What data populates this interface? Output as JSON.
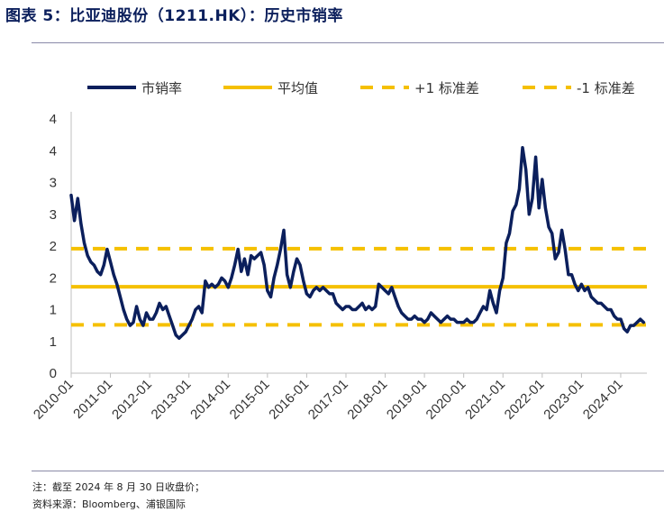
{
  "title": "图表 5：比亚迪股份（1211.HK）：历史市销率",
  "notes": {
    "line1": "注：截至 2024 年 8 月 30 日收盘价；",
    "line2": "资料来源：Bloomberg、浦银国际"
  },
  "chart_data": {
    "type": "line",
    "legend_position": "top",
    "grid": false,
    "colors": {
      "series": "#0b1f5c",
      "mean": "#f5c000",
      "plus1sd": "#f5c000",
      "minus1sd": "#f5c000",
      "axis": "#bfbfbf"
    },
    "legend": [
      "市销率",
      "平均值",
      "+1 标准差",
      "-1 标准差"
    ],
    "y_tick_labels": [
      "0",
      "1",
      "1",
      "2",
      "2",
      "3",
      "3",
      "4",
      "4"
    ],
    "y_tick_values": [
      0,
      0.5,
      1.0,
      1.5,
      2.0,
      2.5,
      3.0,
      3.5,
      4.0
    ],
    "ylim": [
      0,
      4.0
    ],
    "x_tick_labels": [
      "2010-01",
      "2011-01",
      "2012-01",
      "2013-01",
      "2014-01",
      "2015-01",
      "2016-01",
      "2017-01",
      "2018-01",
      "2019-01",
      "2020-01",
      "2021-01",
      "2022-01",
      "2023-01",
      "2024-01"
    ],
    "xlim": [
      "2010-01",
      "2024-09"
    ],
    "mean": 1.36,
    "plus1sd": 1.96,
    "minus1sd": 0.76,
    "series": [
      {
        "name": "市销率",
        "x": [
          "2010-01",
          "2010-02",
          "2010-03",
          "2010-04",
          "2010-05",
          "2010-06",
          "2010-07",
          "2010-08",
          "2010-09",
          "2010-10",
          "2010-11",
          "2010-12",
          "2011-01",
          "2011-02",
          "2011-03",
          "2011-04",
          "2011-05",
          "2011-06",
          "2011-07",
          "2011-08",
          "2011-09",
          "2011-10",
          "2011-11",
          "2011-12",
          "2012-01",
          "2012-02",
          "2012-03",
          "2012-04",
          "2012-05",
          "2012-06",
          "2012-07",
          "2012-08",
          "2012-09",
          "2012-10",
          "2012-11",
          "2012-12",
          "2013-01",
          "2013-02",
          "2013-03",
          "2013-04",
          "2013-05",
          "2013-06",
          "2013-07",
          "2013-08",
          "2013-09",
          "2013-10",
          "2013-11",
          "2013-12",
          "2014-01",
          "2014-02",
          "2014-03",
          "2014-04",
          "2014-05",
          "2014-06",
          "2014-07",
          "2014-08",
          "2014-09",
          "2014-10",
          "2014-11",
          "2014-12",
          "2015-01",
          "2015-02",
          "2015-03",
          "2015-04",
          "2015-05",
          "2015-06",
          "2015-07",
          "2015-08",
          "2015-09",
          "2015-10",
          "2015-11",
          "2015-12",
          "2016-01",
          "2016-02",
          "2016-03",
          "2016-04",
          "2016-05",
          "2016-06",
          "2016-07",
          "2016-08",
          "2016-09",
          "2016-10",
          "2016-11",
          "2016-12",
          "2017-01",
          "2017-02",
          "2017-03",
          "2017-04",
          "2017-05",
          "2017-06",
          "2017-07",
          "2017-08",
          "2017-09",
          "2017-10",
          "2017-11",
          "2017-12",
          "2018-01",
          "2018-02",
          "2018-03",
          "2018-04",
          "2018-05",
          "2018-06",
          "2018-07",
          "2018-08",
          "2018-09",
          "2018-10",
          "2018-11",
          "2018-12",
          "2019-01",
          "2019-02",
          "2019-03",
          "2019-04",
          "2019-05",
          "2019-06",
          "2019-07",
          "2019-08",
          "2019-09",
          "2019-10",
          "2019-11",
          "2019-12",
          "2020-01",
          "2020-02",
          "2020-03",
          "2020-04",
          "2020-05",
          "2020-06",
          "2020-07",
          "2020-08",
          "2020-09",
          "2020-10",
          "2020-11",
          "2020-12",
          "2021-01",
          "2021-02",
          "2021-03",
          "2021-04",
          "2021-05",
          "2021-06",
          "2021-07",
          "2021-08",
          "2021-09",
          "2021-10",
          "2021-11",
          "2021-12",
          "2022-01",
          "2022-02",
          "2022-03",
          "2022-04",
          "2022-05",
          "2022-06",
          "2022-07",
          "2022-08",
          "2022-09",
          "2022-10",
          "2022-11",
          "2022-12",
          "2023-01",
          "2023-02",
          "2023-03",
          "2023-04",
          "2023-05",
          "2023-06",
          "2023-07",
          "2023-08",
          "2023-09",
          "2023-10",
          "2023-11",
          "2023-12",
          "2024-01",
          "2024-02",
          "2024-03",
          "2024-04",
          "2024-05",
          "2024-06",
          "2024-07",
          "2024-08"
        ],
        "values": [
          2.8,
          2.4,
          2.75,
          2.35,
          2.05,
          1.85,
          1.75,
          1.7,
          1.6,
          1.55,
          1.7,
          1.95,
          1.75,
          1.55,
          1.4,
          1.2,
          1.0,
          0.85,
          0.75,
          0.8,
          1.05,
          0.85,
          0.75,
          0.95,
          0.85,
          0.85,
          0.95,
          1.1,
          1.0,
          1.05,
          0.9,
          0.75,
          0.6,
          0.55,
          0.6,
          0.65,
          0.75,
          0.85,
          1.0,
          1.05,
          0.95,
          1.45,
          1.35,
          1.4,
          1.35,
          1.4,
          1.5,
          1.45,
          1.35,
          1.5,
          1.7,
          1.95,
          1.6,
          1.8,
          1.55,
          1.85,
          1.8,
          1.85,
          1.9,
          1.7,
          1.3,
          1.2,
          1.5,
          1.7,
          1.95,
          2.25,
          1.55,
          1.35,
          1.6,
          1.8,
          1.7,
          1.45,
          1.25,
          1.2,
          1.3,
          1.35,
          1.3,
          1.35,
          1.3,
          1.25,
          1.25,
          1.1,
          1.05,
          1.0,
          1.05,
          1.05,
          1.0,
          1.0,
          1.05,
          1.1,
          1.0,
          1.05,
          1.0,
          1.05,
          1.4,
          1.35,
          1.3,
          1.25,
          1.35,
          1.2,
          1.05,
          0.95,
          0.9,
          0.85,
          0.85,
          0.9,
          0.85,
          0.85,
          0.8,
          0.85,
          0.95,
          0.9,
          0.85,
          0.8,
          0.85,
          0.9,
          0.85,
          0.85,
          0.8,
          0.8,
          0.8,
          0.85,
          0.8,
          0.8,
          0.85,
          0.95,
          1.05,
          1.0,
          1.3,
          1.1,
          0.95,
          1.3,
          1.5,
          2.05,
          2.2,
          2.55,
          2.65,
          2.9,
          3.55,
          3.2,
          2.5,
          2.75,
          3.4,
          2.6,
          3.05,
          2.6,
          2.3,
          2.2,
          1.8,
          1.9,
          2.25,
          1.95,
          1.55,
          1.55,
          1.4,
          1.3,
          1.4,
          1.3,
          1.35,
          1.2,
          1.15,
          1.1,
          1.1,
          1.05,
          1.0,
          1.0,
          0.9,
          0.85,
          0.85,
          0.7,
          0.65,
          0.75,
          0.75,
          0.8,
          0.85,
          0.8
        ]
      }
    ]
  }
}
